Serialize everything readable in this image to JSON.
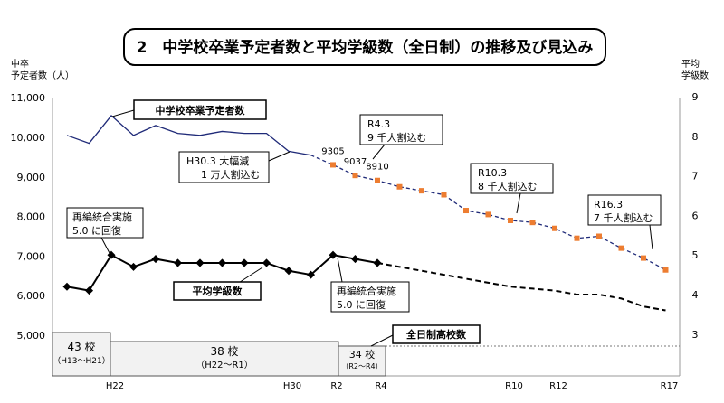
{
  "chart_data": {
    "type": "line",
    "title": "2　中学校卒業予定者数と平均学級数（全日制）の推移及び見込み",
    "left_axis": {
      "label_lines": [
        "中卒",
        "予定者数（人）"
      ],
      "ylim": [
        4600,
        11000
      ],
      "ticks": [
        "5,000",
        "6,000",
        "7,000",
        "8,000",
        "9,000",
        "10,000",
        "11,000"
      ],
      "tick_values": [
        5000,
        6000,
        7000,
        8000,
        9000,
        10000,
        11000
      ]
    },
    "right_axis": {
      "label_lines": [
        "平均",
        "学級数"
      ],
      "ylim": [
        2.6,
        9
      ],
      "ticks": [
        "3",
        "4",
        "5",
        "6",
        "7",
        "8",
        "9"
      ],
      "tick_values": [
        3,
        4,
        5,
        6,
        7,
        8,
        9
      ]
    },
    "x_labels": [
      {
        "index": 2,
        "label": "H22"
      },
      {
        "index": 10,
        "label": "H30"
      },
      {
        "index": 12,
        "label": "R2"
      },
      {
        "index": 14,
        "label": "R4"
      },
      {
        "index": 20,
        "label": "R10"
      },
      {
        "index": 22,
        "label": "R12"
      },
      {
        "index": 27,
        "label": "R17"
      }
    ],
    "series": [
      {
        "name": "中学校卒業予定者数",
        "axis": "left",
        "color": "#1f2a78",
        "marker_color": "#ed7d31",
        "values": [
          10050,
          9850,
          10550,
          10050,
          10300,
          10100,
          10050,
          10150,
          10100,
          10100,
          9650,
          9550,
          9305,
          9037,
          8910,
          8750,
          8650,
          8550,
          8150,
          8050,
          7900,
          7850,
          7700,
          7450,
          7500,
          7200,
          6950,
          6650
        ],
        "actual_until_index": 11,
        "data_labels": [
          {
            "index": 12,
            "text": "9305"
          },
          {
            "index": 13,
            "text": "9037"
          },
          {
            "index": 14,
            "text": "8910"
          }
        ]
      },
      {
        "name": "平均学級数",
        "axis": "right",
        "color": "#000000",
        "values": [
          4.2,
          4.1,
          5.0,
          4.7,
          4.9,
          4.8,
          4.8,
          4.8,
          4.8,
          4.8,
          4.6,
          4.5,
          5.0,
          4.9,
          4.8,
          4.7,
          4.6,
          4.5,
          4.4,
          4.3,
          4.2,
          4.15,
          4.1,
          4.0,
          4.0,
          3.9,
          3.7,
          3.6
        ],
        "actual_until_index": 14
      }
    ],
    "annotations": {
      "enrollment_label": "中学校卒業予定者数",
      "classes_label": "平均学級数",
      "schools_label": "全日制高校数",
      "h30": [
        "H30.3 大幅減",
        "1 万人割込む"
      ],
      "r4_3": [
        "R4.3",
        "9 千人割込む"
      ],
      "r10_3": [
        "R10.3",
        "8 千人割込む"
      ],
      "r16_3": [
        "R16.3",
        "7 千人割込む"
      ],
      "reorg_before": [
        "再編統合実施",
        "5.0 に回復"
      ],
      "reorg_after": [
        "再編統合実施",
        "5.0 に回復"
      ]
    },
    "school_counts": [
      {
        "count": "43 校",
        "period": "（H13～H21）"
      },
      {
        "count": "38 校",
        "period": "（H22～R1）"
      },
      {
        "count": "34 校",
        "period": "（R2～R4）"
      }
    ],
    "grid": false
  }
}
